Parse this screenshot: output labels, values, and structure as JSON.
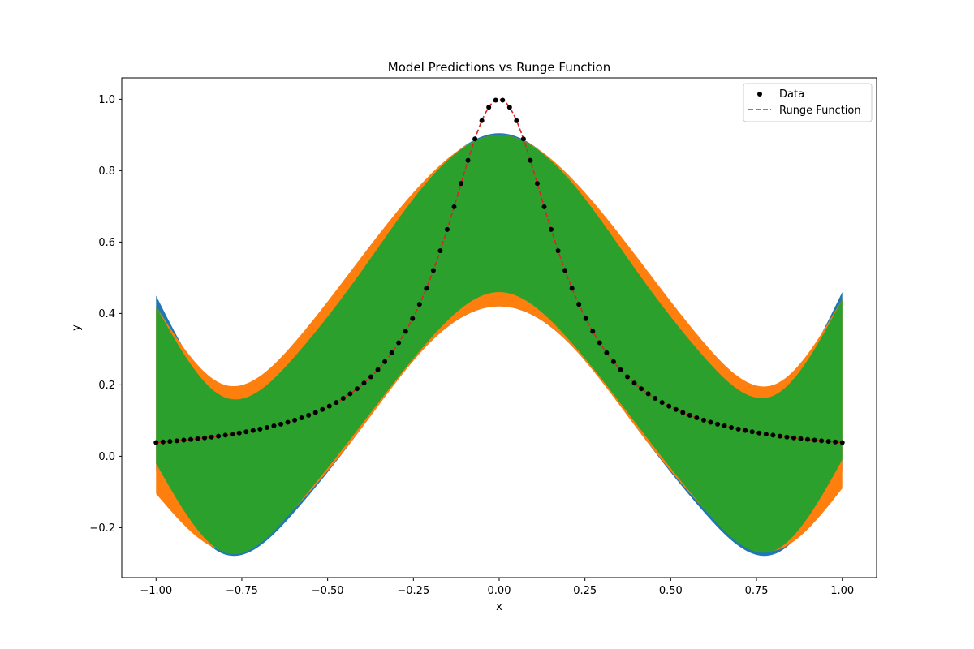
{
  "chart_data": {
    "type": "line",
    "title": "Model Predictions vs Runge Function",
    "xlabel": "x",
    "ylabel": "y",
    "xlim": [
      -1.1,
      1.1
    ],
    "ylim": [
      -0.34,
      1.06
    ],
    "xticks": [
      -1.0,
      -0.75,
      -0.5,
      -0.25,
      0.0,
      0.25,
      0.5,
      0.75,
      1.0
    ],
    "xtick_labels": [
      "−1.00",
      "−0.75",
      "−0.50",
      "−0.25",
      "0.00",
      "0.25",
      "0.50",
      "0.75",
      "1.00"
    ],
    "yticks": [
      -0.2,
      0.0,
      0.2,
      0.4,
      0.6,
      0.8,
      1.0
    ],
    "ytick_labels": [
      "−0.2",
      "0.0",
      "0.2",
      "0.4",
      "0.6",
      "0.8",
      "1.0"
    ],
    "grid": false,
    "legend": {
      "placement": "top-right",
      "entries": [
        "Data",
        "Runge Function"
      ]
    },
    "bands": [
      {
        "color": "#1f77b4",
        "x": [
          -1.0,
          -0.8,
          -0.6,
          -0.4,
          -0.2,
          0.0,
          0.2,
          0.4,
          0.6,
          0.8,
          1.0
        ],
        "lower": [
          -0.04,
          -0.275,
          -0.16,
          0.08,
          0.32,
          0.42,
          0.32,
          0.08,
          -0.16,
          -0.275,
          -0.04
        ],
        "upper": [
          0.45,
          0.165,
          0.275,
          0.52,
          0.78,
          0.905,
          0.78,
          0.52,
          0.275,
          0.165,
          0.46
        ]
      },
      {
        "color": "#ff7f0e",
        "x": [
          -1.0,
          -0.8,
          -0.6,
          -0.4,
          -0.2,
          0.0,
          0.2,
          0.4,
          0.6,
          0.8,
          1.0
        ],
        "lower": [
          -0.105,
          -0.265,
          -0.15,
          0.08,
          0.32,
          0.42,
          0.32,
          0.08,
          -0.15,
          -0.265,
          -0.09
        ],
        "upper": [
          0.42,
          0.2,
          0.315,
          0.56,
          0.79,
          0.9,
          0.79,
          0.56,
          0.315,
          0.2,
          0.44
        ]
      },
      {
        "color": "#2ca02c",
        "x": [
          -1.0,
          -0.8,
          -0.6,
          -0.4,
          -0.2,
          0.0,
          0.2,
          0.4,
          0.6,
          0.8,
          1.0
        ],
        "lower": [
          -0.02,
          -0.27,
          -0.15,
          0.09,
          0.33,
          0.46,
          0.33,
          0.09,
          -0.15,
          -0.265,
          -0.01
        ],
        "upper": [
          0.42,
          0.165,
          0.275,
          0.52,
          0.78,
          0.9,
          0.78,
          0.52,
          0.275,
          0.17,
          0.44
        ]
      }
    ],
    "series": [
      {
        "name": "Data",
        "style": "scatter",
        "color": "#000000",
        "function": "runge",
        "n_points": 100,
        "x_range": [
          -1.0,
          1.0
        ]
      },
      {
        "name": "Runge Function",
        "style": "dashed-line",
        "color": "#d62728",
        "function": "runge",
        "formula": "1/(1+25x^2)",
        "x_range": [
          -1.0,
          1.0
        ]
      }
    ]
  }
}
